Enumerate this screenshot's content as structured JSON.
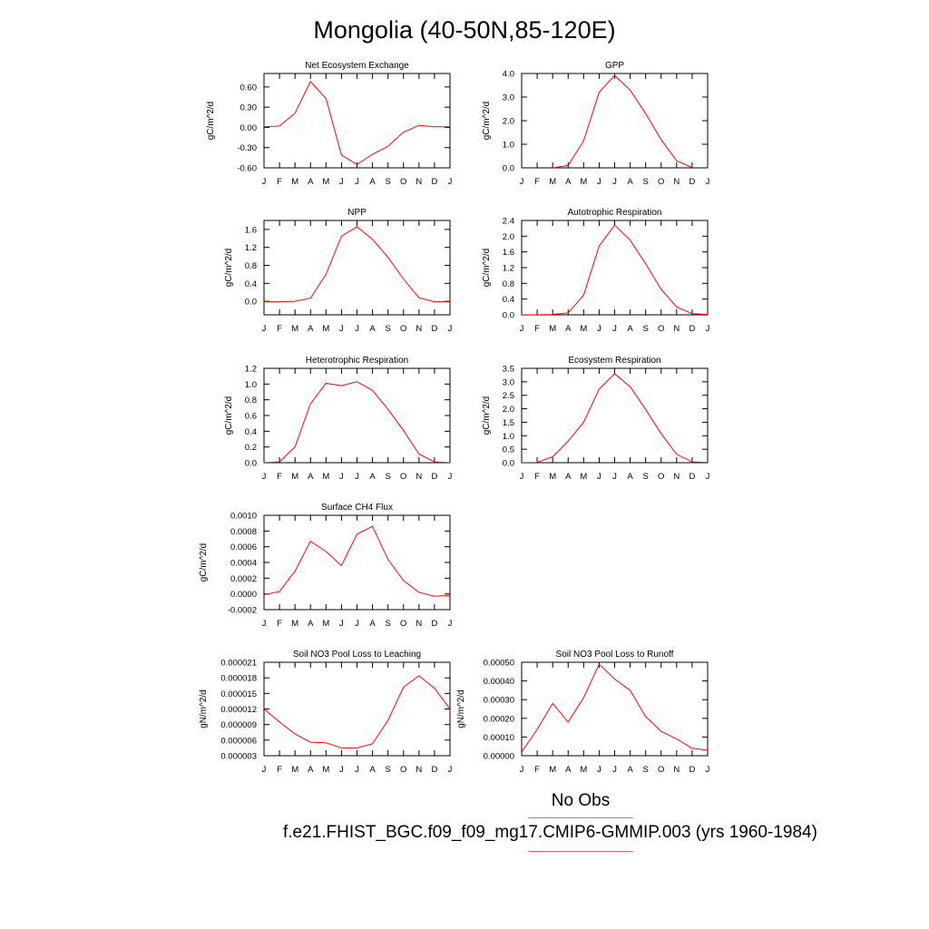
{
  "title": "Mongolia (40-50N,85-120E)",
  "legend": {
    "obs_label": "No Obs",
    "obs_color": "#8080ff",
    "model_label": "f.e21.FHIST_BGC.f09_f09_mg17.CMIP6-GMMIP.003 (yrs 1960-1984)",
    "model_color": "#ff0000"
  },
  "chart_data": [
    {
      "type": "line",
      "title": "Net Ecosystem Exchange",
      "ylabel": "gC/m^2/d",
      "x": [
        "J",
        "F",
        "M",
        "A",
        "M",
        "J",
        "J",
        "A",
        "S",
        "O",
        "N",
        "D",
        "J"
      ],
      "ylim": [
        -0.6,
        0.8
      ],
      "yticks": [
        -0.6,
        -0.3,
        0.0,
        0.3,
        0.6
      ],
      "yticklabels": [
        "-0.60",
        "-0.30",
        "0.00",
        "0.30",
        "0.60"
      ],
      "series": [
        {
          "color": "#ff0000",
          "values": [
            0.01,
            0.02,
            0.21,
            0.68,
            0.43,
            -0.41,
            -0.55,
            -0.4,
            -0.28,
            -0.07,
            0.03,
            0.01,
            0.01
          ]
        }
      ]
    },
    {
      "type": "line",
      "title": "GPP",
      "ylabel": "gC/m^2/d",
      "x": [
        "J",
        "F",
        "M",
        "A",
        "M",
        "J",
        "J",
        "A",
        "S",
        "O",
        "N",
        "D",
        "J"
      ],
      "ylim": [
        0,
        4.0
      ],
      "yticks": [
        0,
        1,
        2,
        3,
        4
      ],
      "yticklabels": [
        "0.0",
        "1.0",
        "2.0",
        "3.0",
        "4.0"
      ],
      "series": [
        {
          "color": "#ff0000",
          "values": [
            null,
            null,
            0.0,
            0.1,
            1.15,
            3.2,
            3.92,
            3.3,
            2.3,
            1.2,
            0.3,
            0.02,
            null
          ]
        }
      ]
    },
    {
      "type": "line",
      "title": "NPP",
      "ylabel": "gC/m^2/d",
      "x": [
        "J",
        "F",
        "M",
        "A",
        "M",
        "J",
        "J",
        "A",
        "S",
        "O",
        "N",
        "D",
        "J"
      ],
      "ylim": [
        -0.3,
        1.8
      ],
      "yticks": [
        0.0,
        0.4,
        0.8,
        1.2,
        1.6
      ],
      "yticklabels": [
        "0.0",
        "0.4",
        "0.8",
        "1.2",
        "1.6"
      ],
      "series": [
        {
          "color": "#ff0000",
          "values": [
            -0.01,
            -0.01,
            0.0,
            0.07,
            0.6,
            1.45,
            1.66,
            1.38,
            0.98,
            0.5,
            0.08,
            -0.01,
            -0.01
          ]
        }
      ]
    },
    {
      "type": "line",
      "title": "Autotrophic Respiration",
      "ylabel": "gC/m^2/d",
      "x": [
        "J",
        "F",
        "M",
        "A",
        "M",
        "J",
        "J",
        "A",
        "S",
        "O",
        "N",
        "D",
        "J"
      ],
      "ylim": [
        0,
        2.4
      ],
      "yticks": [
        0,
        0.4,
        0.8,
        1.2,
        1.6,
        2.0,
        2.4
      ],
      "yticklabels": [
        "0.0",
        "0.4",
        "0.8",
        "1.2",
        "1.6",
        "2.0",
        "2.4"
      ],
      "series": [
        {
          "color": "#ff0000",
          "values": [
            0.0,
            0.0,
            0.01,
            0.05,
            0.5,
            1.75,
            2.28,
            1.9,
            1.3,
            0.65,
            0.2,
            0.03,
            0.01
          ]
        }
      ]
    },
    {
      "type": "line",
      "title": "Heterotrophic Respiration",
      "ylabel": "gC/m^2/d",
      "x": [
        "J",
        "F",
        "M",
        "A",
        "M",
        "J",
        "J",
        "A",
        "S",
        "O",
        "N",
        "D",
        "J"
      ],
      "ylim": [
        0,
        1.2
      ],
      "yticks": [
        0,
        0.2,
        0.4,
        0.6,
        0.8,
        1.0,
        1.2
      ],
      "yticklabels": [
        "0.0",
        "0.2",
        "0.4",
        "0.6",
        "0.8",
        "1.0",
        "1.2"
      ],
      "series": [
        {
          "color": "#ff0000",
          "values": [
            0.0,
            0.01,
            0.2,
            0.75,
            1.01,
            0.98,
            1.03,
            0.92,
            0.68,
            0.41,
            0.11,
            0.01,
            0.0
          ]
        }
      ]
    },
    {
      "type": "line",
      "title": "Ecosystem Respiration",
      "ylabel": "gC/m^2/d",
      "x": [
        "J",
        "F",
        "M",
        "A",
        "M",
        "J",
        "J",
        "A",
        "S",
        "O",
        "N",
        "D",
        "J"
      ],
      "ylim": [
        0,
        3.5
      ],
      "yticks": [
        0,
        0.5,
        1.0,
        1.5,
        2.0,
        2.5,
        3.0,
        3.5
      ],
      "yticklabels": [
        "0.0",
        "0.5",
        "1.0",
        "1.5",
        "2.0",
        "2.5",
        "3.0",
        "3.5"
      ],
      "series": [
        {
          "color": "#ff0000",
          "values": [
            0.0,
            0.01,
            0.22,
            0.8,
            1.5,
            2.73,
            3.3,
            2.82,
            1.98,
            1.08,
            0.31,
            0.03,
            0.01
          ]
        }
      ]
    },
    {
      "type": "line",
      "title": "Surface CH4 Flux",
      "ylabel": "gC/m^2/d",
      "x": [
        "J",
        "F",
        "M",
        "A",
        "M",
        "J",
        "J",
        "A",
        "S",
        "O",
        "N",
        "D",
        "J"
      ],
      "ylim": [
        -0.0002,
        0.001
      ],
      "yticks": [
        -0.0002,
        0.0,
        0.0002,
        0.0004,
        0.0006,
        0.0008,
        0.001
      ],
      "yticklabels": [
        "-0.0002",
        "0.0000",
        "0.0002",
        "0.0004",
        "0.0006",
        "0.0008",
        "0.0010"
      ],
      "series": [
        {
          "color": "#ff0000",
          "values": [
            -1e-05,
            3e-05,
            0.00029,
            0.00067,
            0.00054,
            0.00036,
            0.00076,
            0.00086,
            0.00044,
            0.00017,
            2e-05,
            -3e-05,
            -2e-05
          ]
        }
      ]
    },
    {
      "type": "line",
      "title": "Soil NO3 Pool Loss to Leaching",
      "ylabel": "gN/m^2/d",
      "x": [
        "J",
        "F",
        "M",
        "A",
        "M",
        "J",
        "J",
        "A",
        "S",
        "O",
        "N",
        "D",
        "J"
      ],
      "ylim": [
        3e-06,
        2.1e-05
      ],
      "yticks": [
        3e-06,
        6e-06,
        9e-06,
        1.2e-05,
        1.5e-05,
        1.8e-05,
        2.1e-05
      ],
      "yticklabels": [
        "0.000003",
        "0.000006",
        "0.000009",
        "0.000012",
        "0.000015",
        "0.000018",
        "0.000021"
      ],
      "series": [
        {
          "color": "#ff0000",
          "values": [
            1.2e-05,
            9.5e-06,
            7.2e-06,
            5.6e-06,
            5.5e-06,
            4.5e-06,
            4.5e-06,
            5.3e-06,
            9.8e-06,
            1.62e-05,
            1.84e-05,
            1.6e-05,
            1.2e-05
          ]
        }
      ]
    },
    {
      "type": "line",
      "title": "Soil NO3 Pool Loss to Runoff",
      "ylabel": "gN/m^2/d",
      "x": [
        "J",
        "F",
        "M",
        "A",
        "M",
        "J",
        "J",
        "A",
        "S",
        "O",
        "N",
        "D",
        "J"
      ],
      "ylim": [
        0,
        0.0005
      ],
      "yticks": [
        0,
        0.0001,
        0.0002,
        0.0003,
        0.0004,
        0.0005
      ],
      "yticklabels": [
        "0.00000",
        "0.00010",
        "0.00020",
        "0.00030",
        "0.00040",
        "0.00050"
      ],
      "series": [
        {
          "color": "#ff0000",
          "values": [
            2e-05,
            0.00014,
            0.00028,
            0.00018,
            0.00031,
            0.00049,
            0.00041,
            0.00035,
            0.00021,
            0.00013,
            9e-05,
            4e-05,
            3e-05
          ]
        }
      ]
    }
  ]
}
